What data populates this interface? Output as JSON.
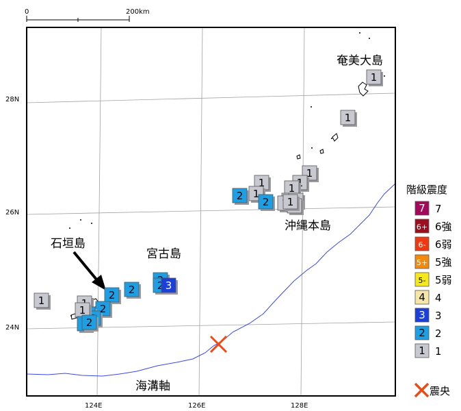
{
  "scale_bar": {
    "zero_label": "0",
    "end_label": "200km"
  },
  "axes": {
    "lat_labels": [
      "28N",
      "26N",
      "24N"
    ],
    "lon_labels": [
      "124E",
      "126E",
      "128E"
    ]
  },
  "places": {
    "amami": "奄美大島",
    "okinawa": "沖縄本島",
    "miyako": "宮古島",
    "ishigaki": "石垣島",
    "trench": "海溝軸"
  },
  "colors": {
    "intensity": {
      "7": "#a3085a",
      "6+": "#9b0f1f",
      "6-": "#ee3a12",
      "5+": "#f28a10",
      "5-": "#f5e81b",
      "4": "#f6e7a6",
      "3": "#1b3fd9",
      "2": "#1e9fe3",
      "1": "#c8c8d0"
    },
    "epicenter": "#f04a12",
    "trench_line": "#3a48e8"
  },
  "observations": [
    {
      "level": "1",
      "station": "amami-1"
    },
    {
      "level": "1",
      "station": "amami-2"
    },
    {
      "level": "1",
      "station": "okinawa-1"
    },
    {
      "level": "1",
      "station": "okinawa-2"
    },
    {
      "level": "1",
      "station": "okinawa-3"
    },
    {
      "level": "1",
      "station": "okinawa-4"
    },
    {
      "level": "1",
      "station": "okinawa-5"
    },
    {
      "level": "1",
      "station": "okinawa-6"
    },
    {
      "level": "1",
      "station": "okinawa-7"
    },
    {
      "level": "1",
      "station": "okinawa-8"
    },
    {
      "level": "1",
      "station": "okinawa-9"
    },
    {
      "level": "1",
      "station": "okinawa-10"
    },
    {
      "level": "2",
      "station": "okinawa-11"
    },
    {
      "level": "2",
      "station": "okinawa-12"
    },
    {
      "level": "2",
      "station": "miyako-1"
    },
    {
      "level": "2",
      "station": "miyako-2"
    },
    {
      "level": "2",
      "station": "miyako-3"
    },
    {
      "level": "3",
      "station": "miyako-4"
    },
    {
      "level": "2",
      "station": "yaeyama-1"
    },
    {
      "level": "2",
      "station": "yaeyama-2"
    },
    {
      "level": "1",
      "station": "yaeyama-3"
    },
    {
      "level": "2",
      "station": "yaeyama-4"
    },
    {
      "level": "2",
      "station": "yaeyama-5"
    },
    {
      "level": "1",
      "station": "yaeyama-6"
    },
    {
      "level": "2",
      "station": "yaeyama-7"
    },
    {
      "level": "2",
      "station": "yaeyama-8"
    },
    {
      "level": "1",
      "station": "yonaguni"
    }
  ],
  "legend": {
    "title": "階級震度",
    "items": [
      {
        "box": "7",
        "label": "7",
        "key": "7",
        "text_color": "#ffffff"
      },
      {
        "box": "6+",
        "label": "6強",
        "key": "6+",
        "text_color": "#ffffff"
      },
      {
        "box": "6-",
        "label": "6弱",
        "key": "6-",
        "text_color": "#ffffff"
      },
      {
        "box": "5+",
        "label": "5強",
        "key": "5+",
        "text_color": "#ffffff"
      },
      {
        "box": "5-",
        "label": "5弱",
        "key": "5-",
        "text_color": "#000000"
      },
      {
        "box": "4",
        "label": "4",
        "key": "4",
        "text_color": "#000000"
      },
      {
        "box": "3",
        "label": "3",
        "key": "3",
        "text_color": "#ffffff"
      },
      {
        "box": "2",
        "label": "2",
        "key": "2",
        "text_color": "#000000"
      },
      {
        "box": "1",
        "label": "1",
        "key": "1",
        "text_color": "#000000"
      }
    ],
    "epicenter_label": "震央"
  }
}
